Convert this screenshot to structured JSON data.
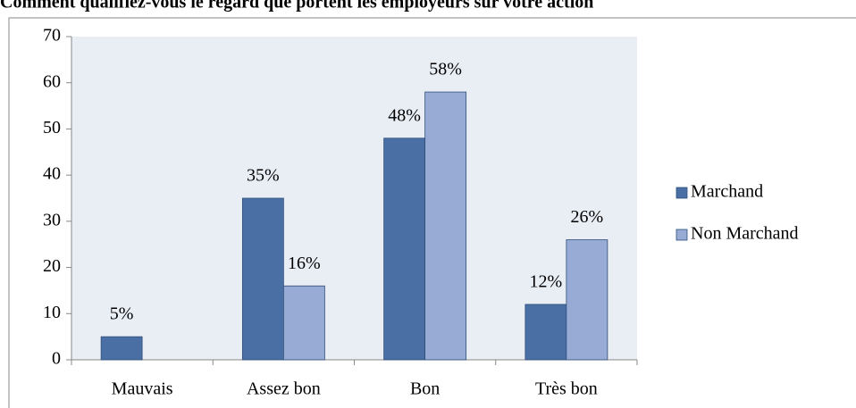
{
  "chart_data": {
    "type": "bar",
    "title": "Comment qualifiez-vous le regard que portent les employeurs sur votre action",
    "categories": [
      "Mauvais",
      "Assez bon",
      "Bon",
      "Très bon"
    ],
    "series": [
      {
        "name": "Marchand",
        "color": "#4a6fa5",
        "values": [
          5,
          35,
          48,
          12
        ],
        "value_labels": [
          "5%",
          "35%",
          "48%",
          "12%"
        ]
      },
      {
        "name": "Non Marchand",
        "color": "#97abd4",
        "values": [
          null,
          16,
          58,
          26
        ],
        "value_labels": [
          null,
          "16%",
          "58%",
          "26%"
        ]
      }
    ],
    "ylim": [
      0,
      70
    ],
    "yticks": [
      0,
      10,
      20,
      30,
      40,
      50,
      60,
      70
    ],
    "grid": false,
    "legend": "right"
  }
}
